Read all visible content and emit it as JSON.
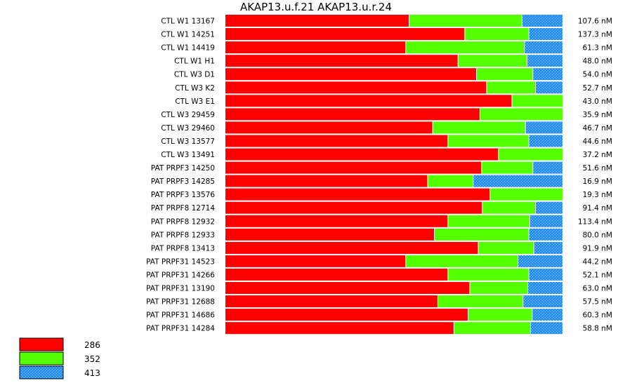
{
  "chart_data": {
    "type": "bar",
    "orientation": "horizontal",
    "stacked": "100-percent",
    "title": "AKAP13.u.f.21  AKAP13.u.r.24",
    "colors": {
      "286": "#ff0000",
      "352": "#55ff00",
      "413": "#1e90ff"
    },
    "rows": [
      {
        "label": "CTL W1 13167",
        "value_label": "107.6 nM",
        "fractions": [
          0.545,
          0.335,
          0.12
        ]
      },
      {
        "label": "CTL W1 14251",
        "value_label": "137.3 nM",
        "fractions": [
          0.71,
          0.19,
          0.1
        ]
      },
      {
        "label": "CTL W1 14419",
        "value_label": "61.3 nM",
        "fractions": [
          0.535,
          0.352,
          0.113
        ]
      },
      {
        "label": "CTL W1 H1",
        "value_label": "48.0 nM",
        "fractions": [
          0.69,
          0.205,
          0.105
        ]
      },
      {
        "label": "CTL W3 D1",
        "value_label": "54.0 nM",
        "fractions": [
          0.745,
          0.167,
          0.088
        ]
      },
      {
        "label": "CTL W3 K2",
        "value_label": "52.7 nM",
        "fractions": [
          0.775,
          0.145,
          0.08
        ]
      },
      {
        "label": "CTL W3 E1",
        "value_label": "43.0 nM",
        "fractions": [
          0.85,
          0.15,
          0.0
        ]
      },
      {
        "label": "CTL W3 29459",
        "value_label": "35.9 nM",
        "fractions": [
          0.755,
          0.245,
          0.0
        ]
      },
      {
        "label": "CTL W3 29460",
        "value_label": "46.7 nM",
        "fractions": [
          0.615,
          0.275,
          0.11
        ]
      },
      {
        "label": "CTL W3 13577",
        "value_label": "44.6 nM",
        "fractions": [
          0.66,
          0.24,
          0.1
        ]
      },
      {
        "label": "CTL W3 13491",
        "value_label": "37.2 nM",
        "fractions": [
          0.81,
          0.19,
          0.0
        ]
      },
      {
        "label": "PAT PRPF3 14250",
        "value_label": "51.6 nM",
        "fractions": [
          0.76,
          0.152,
          0.088
        ]
      },
      {
        "label": "PAT PRPF3 14285",
        "value_label": "16.9 nM",
        "fractions": [
          0.6,
          0.135,
          0.265
        ]
      },
      {
        "label": "PAT PRPF3 13576",
        "value_label": "19.3 nM",
        "fractions": [
          0.785,
          0.215,
          0.0
        ]
      },
      {
        "label": "PAT PRPF8 12714",
        "value_label": "91.4 nM",
        "fractions": [
          0.762,
          0.158,
          0.08
        ]
      },
      {
        "label": "PAT PRPF8 12932",
        "value_label": "113.4 nM",
        "fractions": [
          0.66,
          0.243,
          0.097
        ]
      },
      {
        "label": "PAT PRPF8 12933",
        "value_label": "80.0 nM",
        "fractions": [
          0.62,
          0.28,
          0.1
        ]
      },
      {
        "label": "PAT PRPF8 13413",
        "value_label": "91.9 nM",
        "fractions": [
          0.75,
          0.165,
          0.085
        ]
      },
      {
        "label": "PAT PRPF31 14523",
        "value_label": "44.2 nM",
        "fractions": [
          0.535,
          0.333,
          0.132
        ]
      },
      {
        "label": "PAT PRPF31 14266",
        "value_label": "52.1 nM",
        "fractions": [
          0.66,
          0.24,
          0.1
        ]
      },
      {
        "label": "PAT PRPF31 13190",
        "value_label": "63.0 nM",
        "fractions": [
          0.725,
          0.172,
          0.103
        ]
      },
      {
        "label": "PAT PRPF31 12688",
        "value_label": "57.5 nM",
        "fractions": [
          0.63,
          0.253,
          0.117
        ]
      },
      {
        "label": "PAT PRPF31 14686",
        "value_label": "60.3 nM",
        "fractions": [
          0.72,
          0.19,
          0.09
        ]
      },
      {
        "label": "PAT PRPF31 14284",
        "value_label": "58.8 nM",
        "fractions": [
          0.678,
          0.227,
          0.095
        ]
      }
    ],
    "legend": {
      "position": "bottom-left",
      "entries": [
        {
          "label": "286",
          "color": "#ff0000"
        },
        {
          "label": "352",
          "color": "#55ff00"
        },
        {
          "label": "413",
          "color": "#1e90ff"
        }
      ]
    }
  }
}
